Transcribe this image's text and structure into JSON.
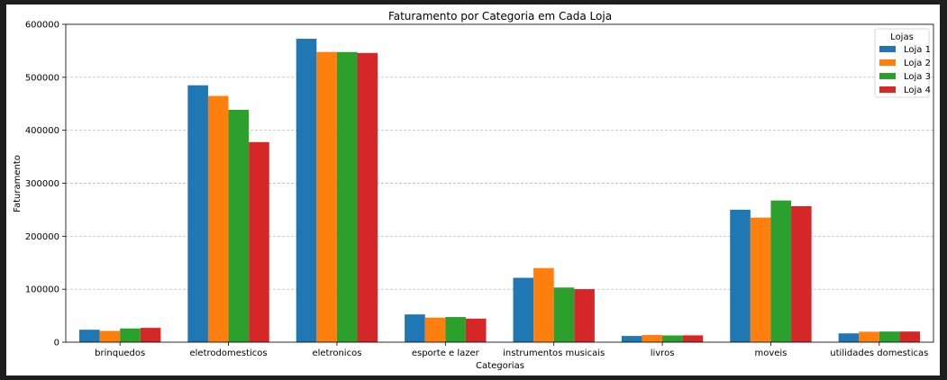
{
  "chart_data": {
    "type": "bar",
    "title": "Faturamento por Categoria em Cada Loja",
    "xlabel": "Categorias",
    "ylabel": "Faturamento",
    "ylim": [
      0,
      600000
    ],
    "yticks": [
      0,
      100000,
      200000,
      300000,
      400000,
      500000,
      600000
    ],
    "grid": "y-dashed",
    "legend": {
      "title": "Lojas",
      "placement": "top-right"
    },
    "categories": [
      "brinquedos",
      "eletrodomesticos",
      "eletronicos",
      "esporte e lazer",
      "instrumentos musicais",
      "livros",
      "moveis",
      "utilidades domesticas"
    ],
    "series": [
      {
        "name": "Loja 1",
        "color": "#1f77b4",
        "values": [
          23500,
          484900,
          572700,
          52400,
          121500,
          11700,
          250000,
          16600
        ]
      },
      {
        "name": "Loja 2",
        "color": "#ff7f0e",
        "values": [
          21300,
          464800,
          547800,
          46300,
          139900,
          13500,
          235200,
          19700
        ]
      },
      {
        "name": "Loja 3",
        "color": "#2ca02c",
        "values": [
          25900,
          438600,
          547700,
          47500,
          103200,
          12700,
          267400,
          20100
        ]
      },
      {
        "name": "Loja 4",
        "color": "#d62728",
        "values": [
          27000,
          377700,
          545900,
          44500,
          100100,
          12900,
          256700,
          20100
        ]
      }
    ]
  }
}
